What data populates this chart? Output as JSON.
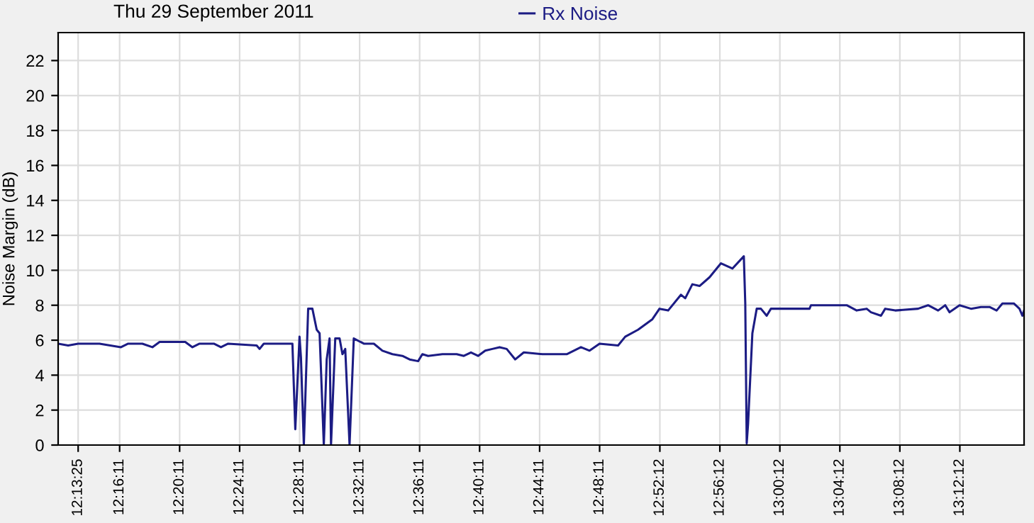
{
  "chart_data": {
    "type": "line",
    "title": "Thu 29 September 2011",
    "ylabel": "Noise Margin (dB)",
    "series": [
      {
        "name": "Rx Noise",
        "color": "#1c1c84",
        "x": [
          12.2014,
          12.2125,
          12.2236,
          12.2474,
          12.2712,
          12.2792,
          12.295,
          12.3061,
          12.3141,
          12.3426,
          12.3506,
          12.3585,
          12.3744,
          12.3823,
          12.3903,
          12.422,
          12.4252,
          12.4299,
          12.4617,
          12.4649,
          12.4696,
          12.4712,
          12.4744,
          12.4792,
          12.4839,
          12.4887,
          12.4919,
          12.4966,
          12.4998,
          12.503,
          12.5046,
          12.5093,
          12.5141,
          12.5173,
          12.5204,
          12.5252,
          12.5299,
          12.5411,
          12.5522,
          12.5617,
          12.5728,
          12.5839,
          12.5919,
          12.6014,
          12.6061,
          12.6125,
          12.6284,
          12.6442,
          12.6522,
          12.6601,
          12.668,
          12.676,
          12.6839,
          12.6919,
          12.6998,
          12.7093,
          12.7188,
          12.7395,
          12.7665,
          12.7823,
          12.7919,
          12.803,
          12.8236,
          12.8315,
          12.8458,
          12.8617,
          12.8696,
          12.8792,
          12.8934,
          12.8982,
          12.9061,
          12.9141,
          12.9252,
          12.9379,
          12.9506,
          12.9633,
          12.9649,
          12.9665,
          12.968,
          12.9728,
          12.9776,
          12.9823,
          12.9887,
          12.9934,
          13.0363,
          13.0379,
          13.0776,
          13.0887,
          13.0998,
          13.1046,
          13.1157,
          13.1204,
          13.1315,
          13.1569,
          13.168,
          13.1792,
          13.1871,
          13.1919,
          13.203,
          13.2157,
          13.2268,
          13.2363,
          13.2442,
          13.2506,
          13.2633,
          13.2696,
          13.2728,
          13.2747
        ],
        "values": [
          5.8,
          5.7,
          5.8,
          5.8,
          5.6,
          5.8,
          5.8,
          5.6,
          5.9,
          5.9,
          5.6,
          5.8,
          5.8,
          5.6,
          5.8,
          5.7,
          5.5,
          5.8,
          5.8,
          0.9,
          6.2,
          5.0,
          0,
          7.8,
          7.8,
          6.6,
          6.4,
          0,
          4.9,
          6.1,
          0,
          6.1,
          6.1,
          5.2,
          5.5,
          0,
          6.1,
          5.8,
          5.8,
          5.4,
          5.2,
          5.1,
          4.9,
          4.8,
          5.2,
          5.1,
          5.2,
          5.2,
          5.1,
          5.3,
          5.1,
          5.4,
          5.5,
          5.6,
          5.5,
          4.9,
          5.3,
          5.2,
          5.2,
          5.6,
          5.4,
          5.8,
          5.7,
          6.2,
          6.6,
          7.2,
          7.8,
          7.7,
          8.6,
          8.4,
          9.2,
          9.1,
          9.6,
          10.4,
          10.1,
          10.8,
          8.1,
          0.1,
          1.2,
          6.4,
          7.8,
          7.8,
          7.4,
          7.8,
          7.8,
          8.0,
          8.0,
          7.7,
          7.8,
          7.6,
          7.4,
          7.8,
          7.7,
          7.8,
          8.0,
          7.7,
          8.0,
          7.6,
          8.0,
          7.8,
          7.9,
          7.9,
          7.7,
          8.1,
          8.1,
          7.8,
          7.4,
          7.7
        ]
      }
    ],
    "xlim": [
      12.2014,
      13.2747
    ],
    "ylim": [
      0,
      23.6
    ],
    "xticks": [
      {
        "value": 12.22361,
        "label": "12:13:25"
      },
      {
        "value": 12.26972,
        "label": "12:16:11"
      },
      {
        "value": 12.33639,
        "label": "12:20:11"
      },
      {
        "value": 12.40306,
        "label": "12:24:11"
      },
      {
        "value": 12.46972,
        "label": "12:28:11"
      },
      {
        "value": 12.53639,
        "label": "12:32:11"
      },
      {
        "value": 12.60306,
        "label": "12:36:11"
      },
      {
        "value": 12.66972,
        "label": "12:40:11"
      },
      {
        "value": 12.73639,
        "label": "12:44:11"
      },
      {
        "value": 12.80306,
        "label": "12:48:11"
      },
      {
        "value": 12.87,
        "label": "12:52:12"
      },
      {
        "value": 12.93667,
        "label": "12:56:12"
      },
      {
        "value": 13.00333,
        "label": "13:00:12"
      },
      {
        "value": 13.07,
        "label": "13:04:12"
      },
      {
        "value": 13.13667,
        "label": "13:08:12"
      },
      {
        "value": 13.20333,
        "label": "13:12:12"
      }
    ],
    "yticks": [
      0,
      2,
      4,
      6,
      8,
      10,
      12,
      14,
      16,
      18,
      20,
      22
    ],
    "grid": true,
    "legend": "top",
    "marker": "none",
    "line_style": "solid"
  }
}
